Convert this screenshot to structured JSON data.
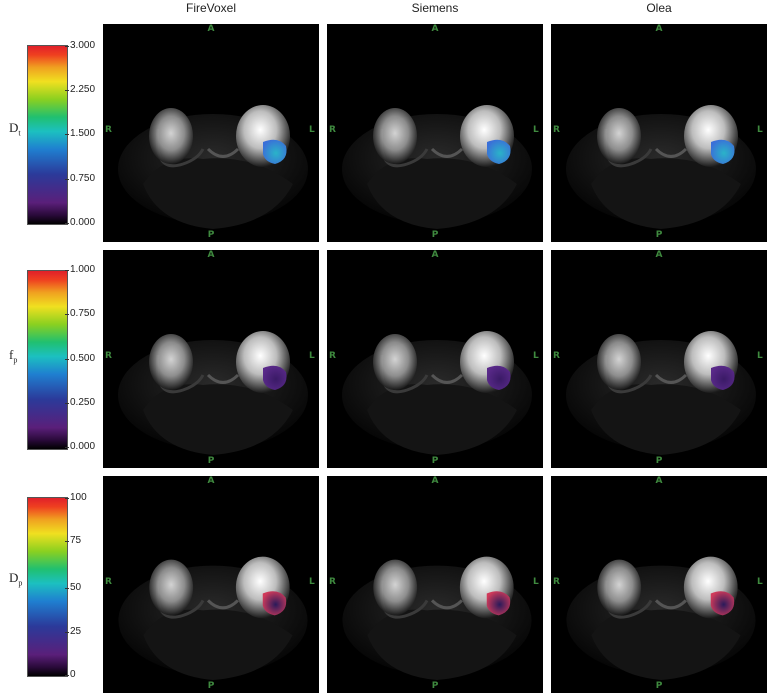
{
  "columns": [
    "FireVoxel",
    "Siemens",
    "Olea"
  ],
  "orientation": {
    "top": "A",
    "bottom": "P",
    "left": "R",
    "right": "L"
  },
  "rows": [
    {
      "param": "D",
      "param_sub": "t",
      "ticks": [
        "3.000",
        "2.250",
        "1.500",
        "0.750",
        "0.000"
      ],
      "tumor_color": "#2ab3c8",
      "tumor_color2": "#3a6fd8"
    },
    {
      "param": "f",
      "param_sub": "p",
      "ticks": [
        "1.000",
        "0.750",
        "0.500",
        "0.250",
        "0.000"
      ],
      "tumor_color": "#3a1a66",
      "tumor_color2": "#5a2a8a"
    },
    {
      "param": "D",
      "param_sub": "p",
      "ticks": [
        "100",
        "75",
        "50",
        "25",
        "0"
      ],
      "tumor_color": "#2a1a5a",
      "tumor_color2": "#d03a5a"
    }
  ]
}
